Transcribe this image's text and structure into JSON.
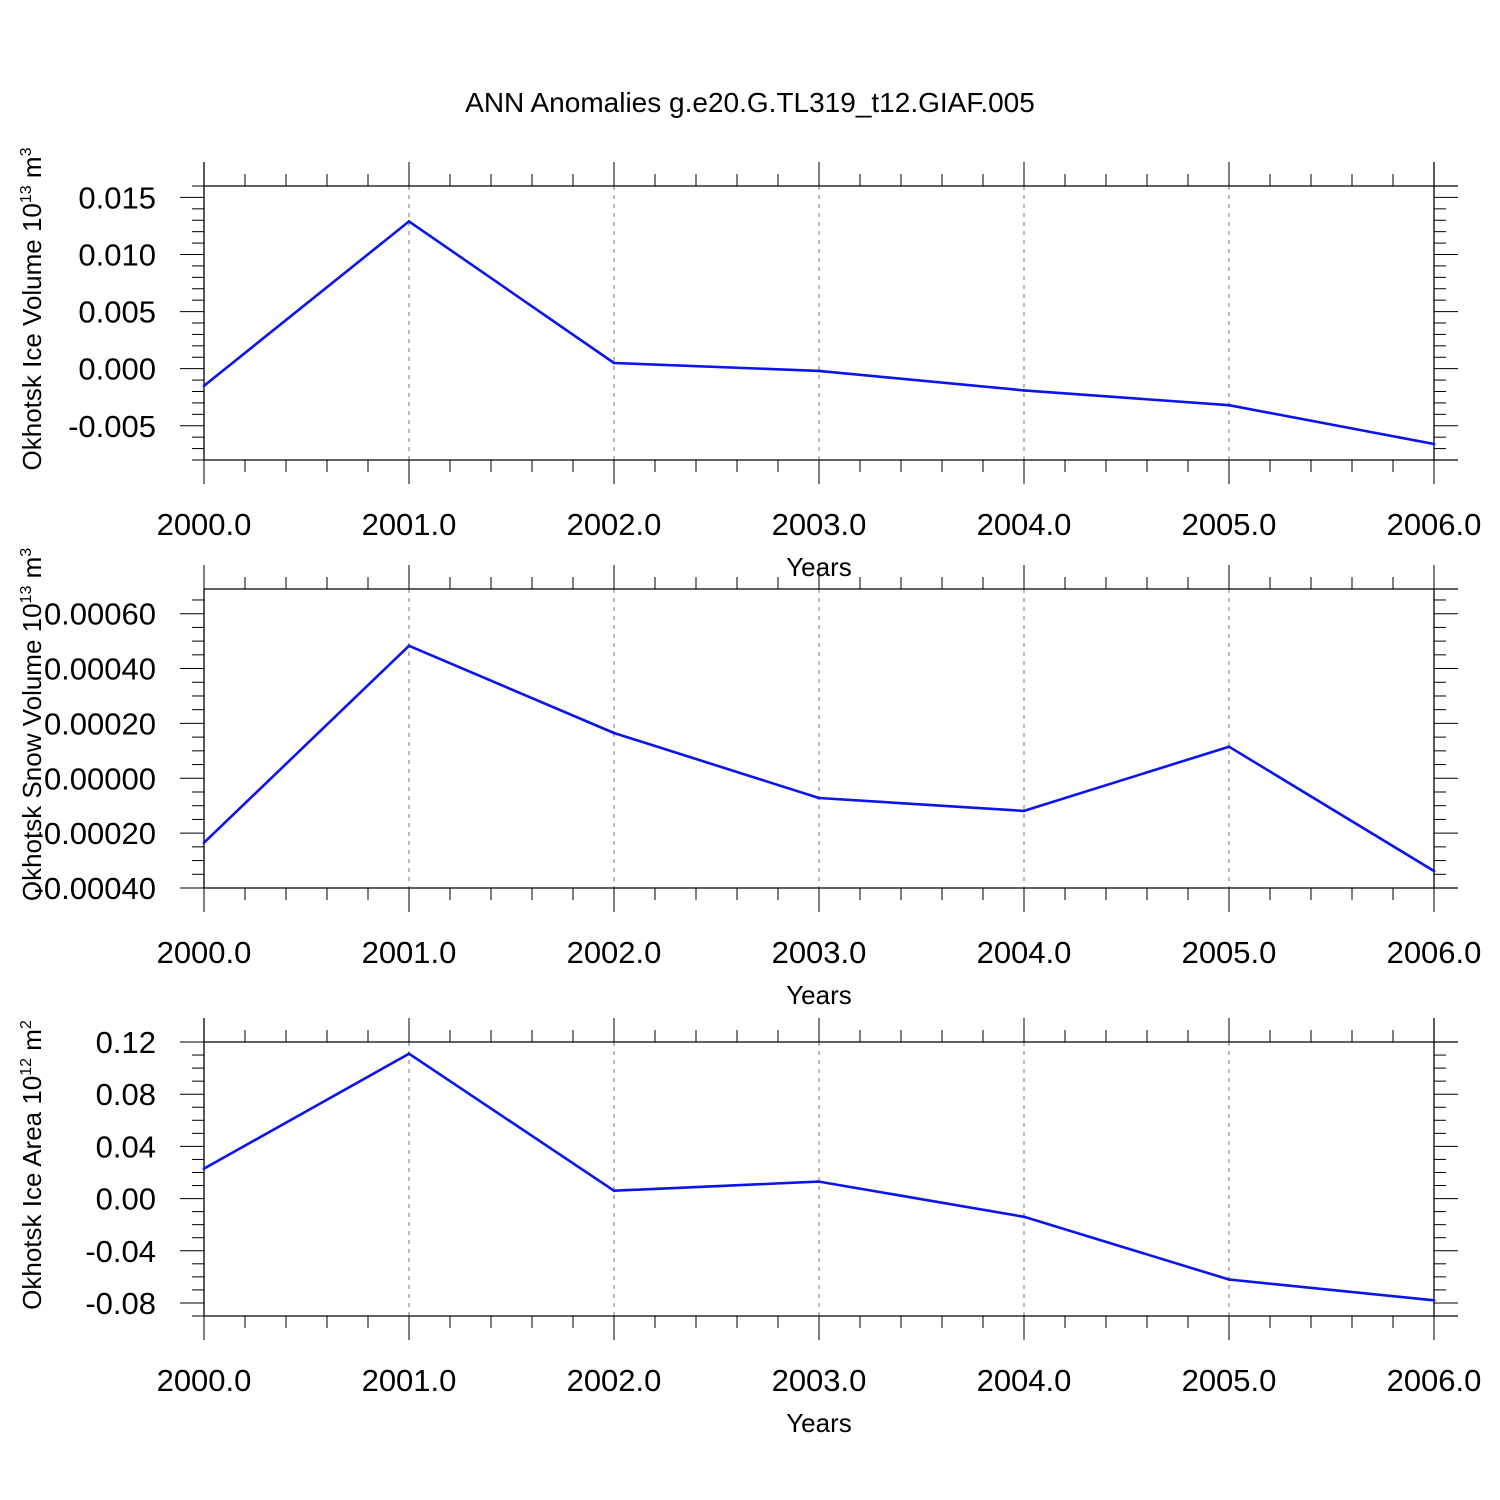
{
  "title": "ANN Anomalies g.e20.G.TL319_t12.GIAF.005",
  "colors": {
    "line": "#0a14f0",
    "axis": "#000000",
    "grid": "#8c8c8c"
  },
  "chart_data": [
    {
      "type": "line",
      "title": "",
      "xlabel": "Years",
      "ylabel_main": "Okhotsk Ice Volume 10",
      "ylabel_sup": "13",
      "ylabel_unit": " m",
      "ylabel_unit_sup": "3",
      "xlim": [
        2000,
        2006
      ],
      "ylim": [
        -0.008,
        0.016
      ],
      "x_ticks": [
        "2000.0",
        "2001.0",
        "2002.0",
        "2003.0",
        "2004.0",
        "2005.0",
        "2006.0"
      ],
      "y_ticks": [
        "-0.005",
        "0.000",
        "0.005",
        "0.010",
        "0.015"
      ],
      "grid": "vertical dashed",
      "x": [
        2000,
        2001,
        2002,
        2003,
        2004,
        2005,
        2006
      ],
      "series": [
        {
          "values": [
            -0.0015,
            0.0129,
            0.0005,
            -0.0002,
            -0.0019,
            -0.0032,
            -0.0066
          ]
        }
      ]
    },
    {
      "type": "line",
      "title": "",
      "xlabel": "Years",
      "ylabel_main": "Okhotsk Snow Volume 10",
      "ylabel_sup": "13",
      "ylabel_unit": " m",
      "ylabel_unit_sup": "3",
      "xlim": [
        2000,
        2006
      ],
      "ylim": [
        -0.0004,
        0.00069
      ],
      "x_ticks": [
        "2000.0",
        "2001.0",
        "2002.0",
        "2003.0",
        "2004.0",
        "2005.0",
        "2006.0"
      ],
      "y_ticks": [
        "-0.00040",
        "-0.00020",
        "0.00000",
        "0.00020",
        "0.00040",
        "0.00060"
      ],
      "grid": "vertical dashed",
      "x": [
        2000,
        2001,
        2002,
        2003,
        2004,
        2005,
        2006
      ],
      "series": [
        {
          "values": [
            -0.000235,
            0.000483,
            0.000165,
            -7.2e-05,
            -0.000119,
            0.000115,
            -0.000338
          ]
        }
      ]
    },
    {
      "type": "line",
      "title": "",
      "xlabel": "Years",
      "ylabel_main": "Okhotsk Ice Area 10",
      "ylabel_sup": "12",
      "ylabel_unit": " m",
      "ylabel_unit_sup": "2",
      "xlim": [
        2000,
        2006
      ],
      "ylim": [
        -0.09,
        0.12
      ],
      "x_ticks": [
        "2000.0",
        "2001.0",
        "2002.0",
        "2003.0",
        "2004.0",
        "2005.0",
        "2006.0"
      ],
      "y_ticks": [
        "-0.08",
        "-0.04",
        "0.00",
        "0.04",
        "0.08",
        "0.12"
      ],
      "grid": "vertical dashed",
      "x": [
        2000,
        2001,
        2002,
        2003,
        2004,
        2005,
        2006
      ],
      "series": [
        {
          "values": [
            0.023,
            0.111,
            0.006,
            0.013,
            -0.014,
            -0.062,
            -0.078
          ]
        }
      ]
    }
  ]
}
